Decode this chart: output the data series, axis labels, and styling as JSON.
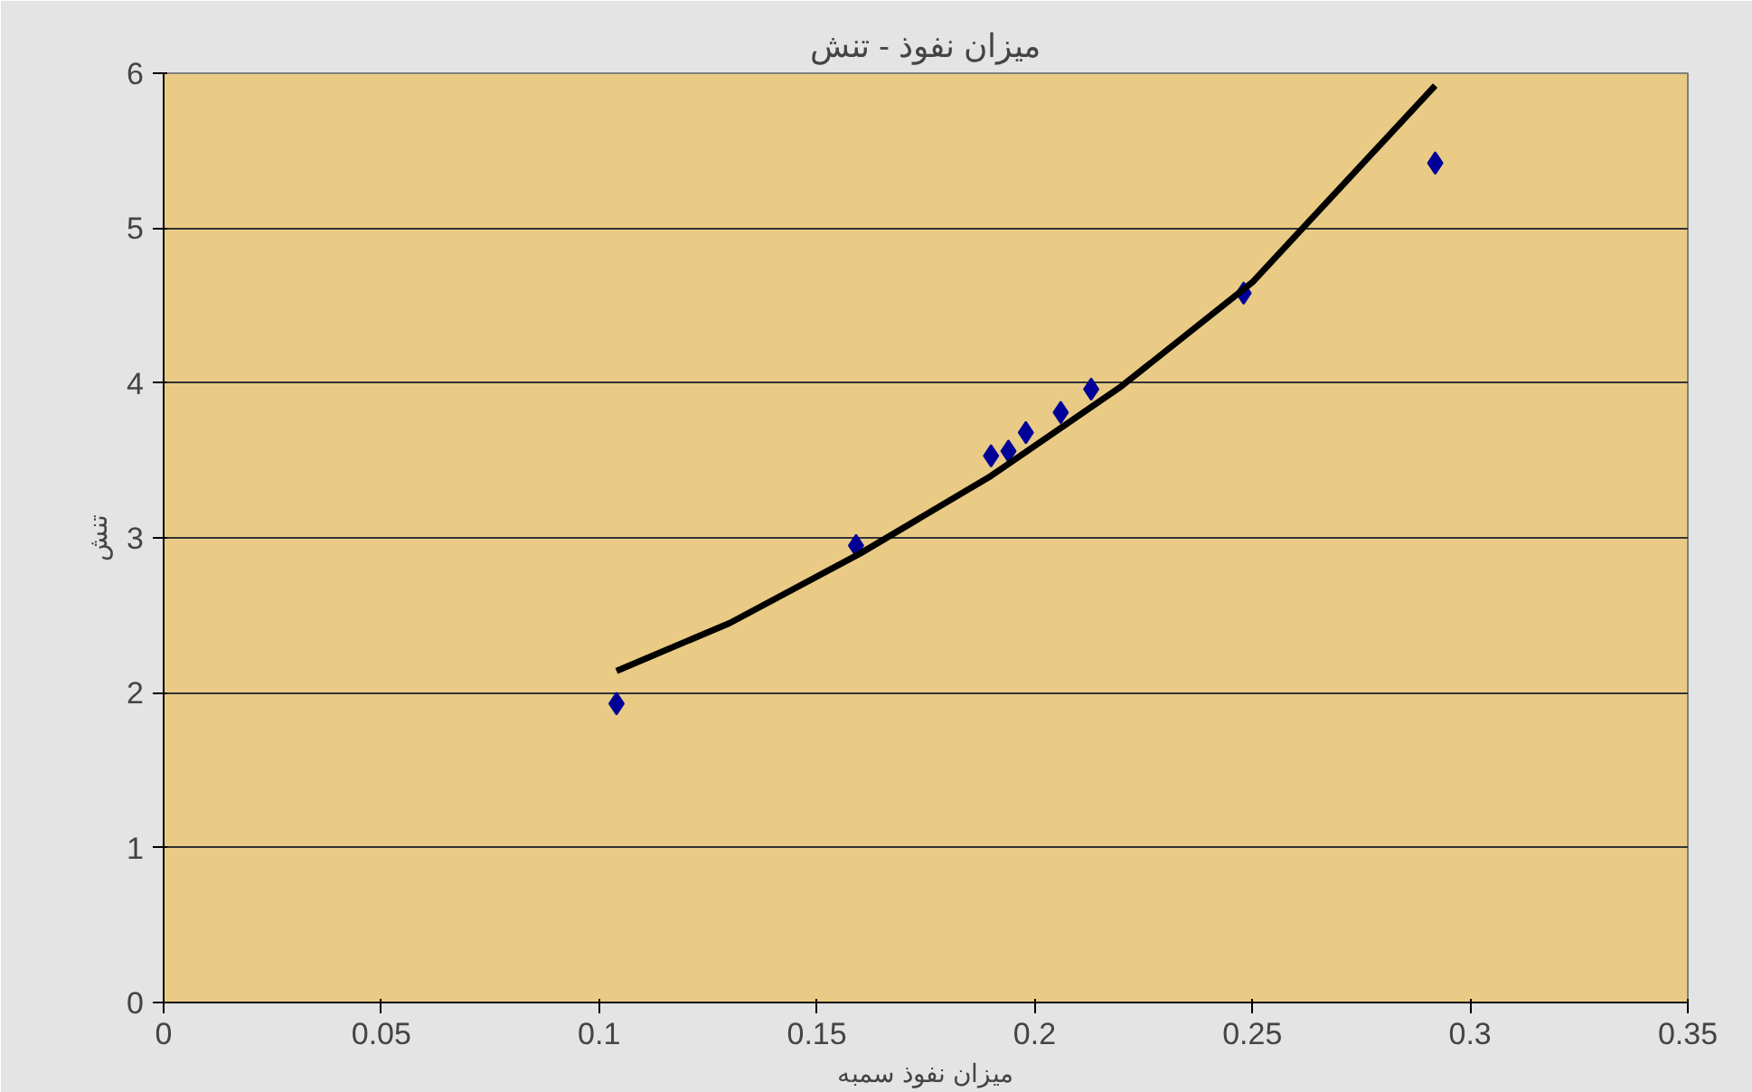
{
  "chart_data": {
    "type": "scatter",
    "title": "میزان نفوذ - تنش",
    "xlabel": "میزان نفوذ سمبه",
    "ylabel": "تنش",
    "xlim": [
      0,
      0.35
    ],
    "xticks": [
      0,
      0.05,
      0.1,
      0.15,
      0.2,
      0.25,
      0.3,
      0.35
    ],
    "ylim": [
      0,
      6
    ],
    "yticks": [
      0,
      1,
      2,
      3,
      4,
      5,
      6
    ],
    "grid": "y",
    "marker": "diamond",
    "series": [
      {
        "color": "#000099",
        "x": [
          0.104,
          0.159,
          0.19,
          0.194,
          0.198,
          0.206,
          0.213,
          0.248,
          0.292
        ],
        "values": [
          1.93,
          2.95,
          3.53,
          3.56,
          3.68,
          3.81,
          3.96,
          4.58,
          5.42
        ]
      },
      {
        "type": "line",
        "color": "#000000",
        "marker": "none",
        "x": [
          0.104,
          0.13,
          0.16,
          0.19,
          0.22,
          0.25,
          0.292
        ],
        "values": [
          2.14,
          2.45,
          2.9,
          3.4,
          3.98,
          4.65,
          5.92
        ]
      }
    ]
  }
}
